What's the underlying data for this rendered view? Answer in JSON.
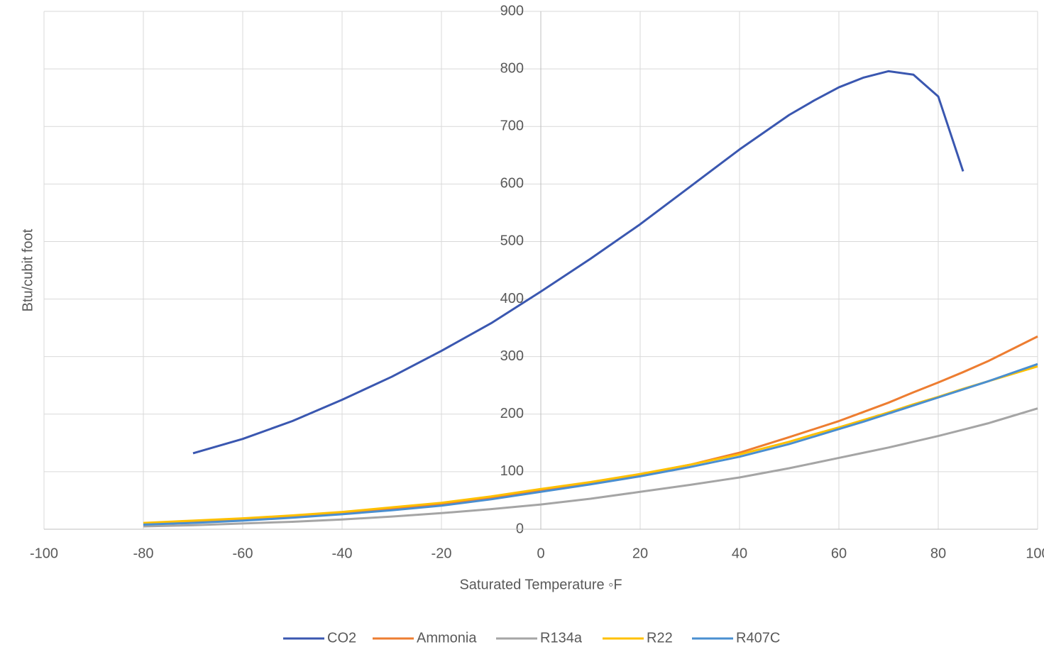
{
  "chart_data": {
    "type": "line",
    "xlabel": "Saturated Temperature ◦F",
    "ylabel": "Btu/cubit foot",
    "x": [
      -80,
      -70,
      -60,
      -50,
      -40,
      -30,
      -20,
      -10,
      0,
      10,
      20,
      30,
      40,
      50,
      55,
      60,
      65,
      70,
      75,
      80,
      85,
      90,
      100
    ],
    "series": [
      {
        "name": "CO2",
        "color": "#3a57b0",
        "values": [
          null,
          132,
          157,
          188,
          225,
          265,
          310,
          358,
          413,
          470,
          530,
          595,
          660,
          720,
          745,
          768,
          785,
          796,
          790,
          752,
          622,
          null,
          null
        ]
      },
      {
        "name": "Ammonia",
        "color": "#ed7d31",
        "values": [
          10,
          13,
          17,
          22,
          28,
          35,
          43,
          55,
          68,
          80,
          95,
          112,
          133,
          160,
          174,
          188,
          204,
          220,
          238,
          255,
          273,
          292,
          335
        ]
      },
      {
        "name": "R134a",
        "color": "#a5a5a5",
        "values": [
          5,
          7,
          10,
          13,
          17,
          22,
          28,
          35,
          43,
          53,
          65,
          77,
          90,
          106,
          115,
          124,
          133,
          142,
          152,
          162,
          173,
          184,
          210
        ]
      },
      {
        "name": "R22",
        "color": "#ffc000",
        "values": [
          11,
          15,
          19,
          24,
          30,
          38,
          46,
          57,
          70,
          82,
          96,
          112,
          130,
          152,
          165,
          177,
          190,
          203,
          217,
          230,
          244,
          257,
          283
        ]
      },
      {
        "name": "R407C",
        "color": "#4a8fd0",
        "values": [
          8,
          11,
          15,
          20,
          26,
          33,
          41,
          52,
          65,
          78,
          92,
          108,
          126,
          148,
          161,
          174,
          187,
          201,
          215,
          229,
          243,
          257,
          287
        ]
      }
    ],
    "xlim": [
      -100,
      100
    ],
    "xticks": [
      -100,
      -80,
      -60,
      -40,
      -20,
      0,
      20,
      40,
      60,
      80,
      100
    ],
    "ylim": [
      0,
      900
    ],
    "yticks": [
      0,
      100,
      200,
      300,
      400,
      500,
      600,
      700,
      800,
      900
    ],
    "grid": true,
    "legend": "bottom"
  }
}
